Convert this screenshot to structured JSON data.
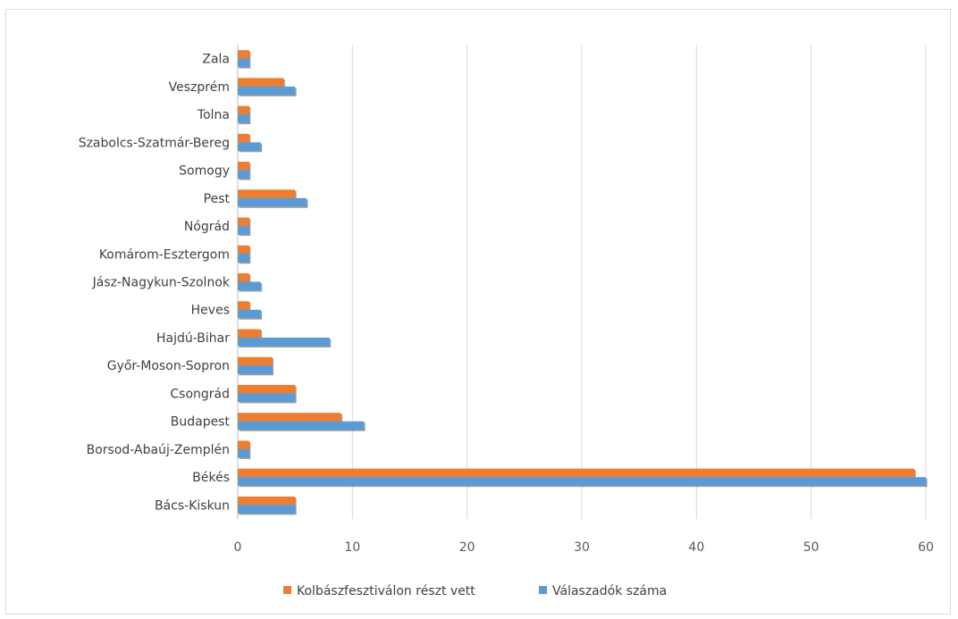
{
  "chart_data": {
    "type": "bar",
    "orientation": "horizontal",
    "categories": [
      "Bács-Kiskun",
      "Békés",
      "Borsod-Abaúj-Zemplén",
      "Budapest",
      "Csongrád",
      "Győr-Moson-Sopron",
      "Hajdú-Bihar",
      "Heves",
      "Jász-Nagykun-Szolnok",
      "Komárom-Esztergom",
      "Nógrád",
      "Pest",
      "Somogy",
      "Szabolcs-Szatmár-Bereg",
      "Tolna",
      "Veszprém",
      "Zala"
    ],
    "series": [
      {
        "name": "Kolbászfesztiválon részt vett",
        "color": "#ed7d31",
        "values": [
          5,
          59,
          1,
          9,
          5,
          3,
          2,
          1,
          1,
          1,
          1,
          5,
          1,
          1,
          1,
          4,
          1
        ]
      },
      {
        "name": "Válaszadók száma",
        "color": "#5b9bd5",
        "values": [
          5,
          60,
          1,
          11,
          5,
          3,
          8,
          2,
          2,
          1,
          1,
          6,
          1,
          2,
          1,
          5,
          1
        ]
      }
    ],
    "xticks": [
      0,
      10,
      20,
      30,
      40,
      50,
      60
    ],
    "xlim": [
      0,
      60
    ],
    "grid": "vertical",
    "legend": "bottom"
  }
}
